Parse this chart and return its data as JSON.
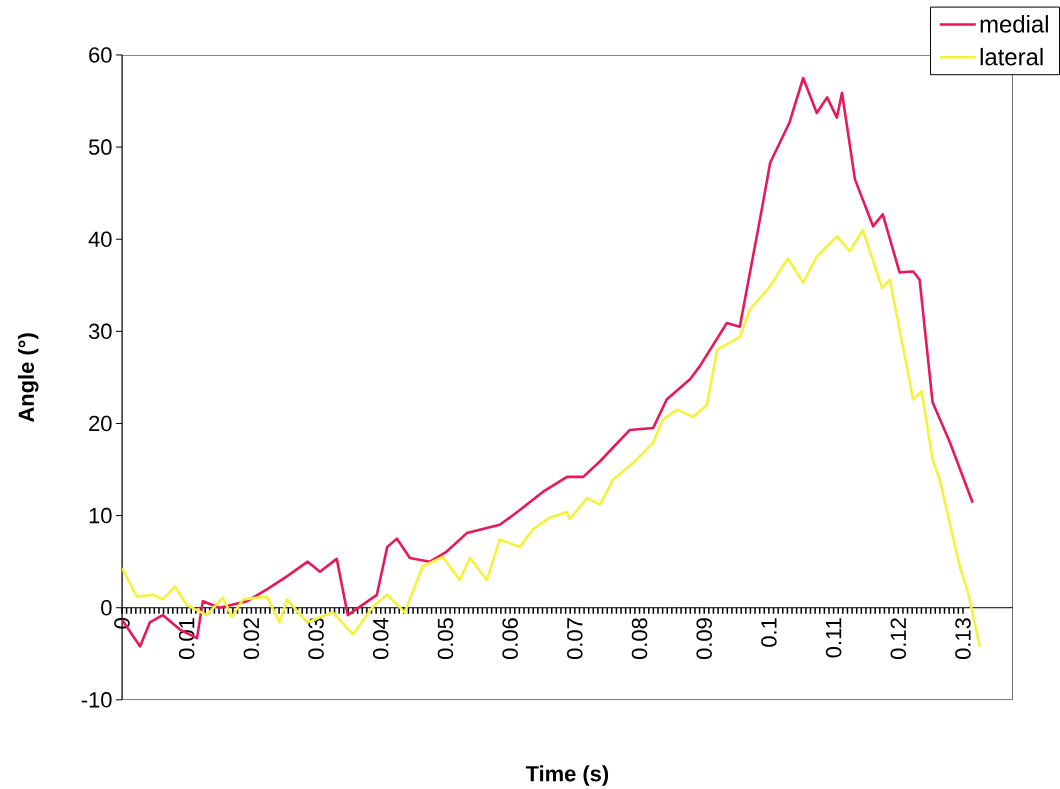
{
  "chart_data": {
    "type": "line",
    "xlabel": "Time (s)",
    "ylabel": "Angle (°)",
    "xlim": [
      0,
      0.1377
    ],
    "xticks": [
      0,
      0.01,
      0.02,
      0.03,
      0.04,
      0.05,
      0.06,
      0.07,
      0.08,
      0.09,
      0.1,
      0.11,
      0.12,
      0.13
    ],
    "ylim": [
      -10,
      60
    ],
    "yticks": [
      -10,
      0,
      10,
      20,
      30,
      40,
      50,
      60
    ],
    "legend": "top right",
    "series": [
      {
        "name": "medial",
        "color": "#e8185a",
        "x": [
          0,
          0.0028,
          0.0043,
          0.0063,
          0.009,
          0.0116,
          0.0125,
          0.0151,
          0.0193,
          0.0224,
          0.0255,
          0.0287,
          0.0306,
          0.0332,
          0.0349,
          0.0394,
          0.041,
          0.0425,
          0.0445,
          0.0476,
          0.0502,
          0.0533,
          0.0584,
          0.0615,
          0.0651,
          0.0688,
          0.0713,
          0.0739,
          0.0785,
          0.0821,
          0.0842,
          0.0878,
          0.0893,
          0.0935,
          0.0955,
          0.0986,
          0.1002,
          0.1032,
          0.1053,
          0.1074,
          0.109,
          0.1105,
          0.1113,
          0.1133,
          0.1161,
          0.1176,
          0.1202,
          0.1223,
          0.1233,
          0.1253,
          0.128,
          0.1315
        ],
        "values": [
          -1.3,
          -4.2,
          -1.6,
          -0.8,
          -2.4,
          -3.3,
          0.7,
          0,
          0.7,
          2,
          3.4,
          5,
          3.9,
          5.3,
          -0.8,
          1.4,
          6.6,
          7.5,
          5.4,
          5,
          6.1,
          8.1,
          9,
          10.6,
          12.6,
          14.2,
          14.2,
          15.9,
          19.3,
          19.5,
          22.6,
          24.8,
          26.2,
          30.9,
          30.5,
          42.1,
          48.3,
          52.7,
          57.5,
          53.7,
          55.4,
          53.2,
          55.9,
          46.5,
          41.4,
          42.7,
          36.4,
          36.5,
          35.6,
          22.3,
          17.9,
          11.4
        ]
      },
      {
        "name": "lateral",
        "color": "#f5f23a",
        "x": [
          0,
          0.0023,
          0.0048,
          0.0063,
          0.0082,
          0.01,
          0.0131,
          0.0156,
          0.017,
          0.0187,
          0.0224,
          0.0244,
          0.0255,
          0.0286,
          0.0326,
          0.0357,
          0.0388,
          0.041,
          0.0437,
          0.0465,
          0.0496,
          0.0522,
          0.0538,
          0.0564,
          0.0584,
          0.0615,
          0.0635,
          0.0662,
          0.0688,
          0.0692,
          0.0719,
          0.0739,
          0.0759,
          0.079,
          0.0821,
          0.0836,
          0.0858,
          0.0883,
          0.0904,
          0.092,
          0.0955,
          0.0971,
          0.1002,
          0.1029,
          0.1053,
          0.1074,
          0.1105,
          0.1125,
          0.1145,
          0.1175,
          0.1187,
          0.1223,
          0.1236,
          0.1253,
          0.1264,
          0.1295,
          0.1308,
          0.1326
        ],
        "values": [
          4.3,
          1.2,
          1.4,
          0.9,
          2.3,
          0.3,
          -0.8,
          1.1,
          -1,
          0.9,
          1.2,
          -1.6,
          0.9,
          -1.6,
          -0.5,
          -2.9,
          0.1,
          1.4,
          -0.5,
          4.5,
          5.5,
          3,
          5.4,
          3,
          7.4,
          6.6,
          8.5,
          9.8,
          10.4,
          9.6,
          11.9,
          11.2,
          13.9,
          15.7,
          17.9,
          20.4,
          21.5,
          20.7,
          22,
          28,
          29.4,
          32.4,
          34.9,
          37.9,
          35.3,
          38.1,
          40.3,
          38.7,
          41,
          34.7,
          35.6,
          22.6,
          23.5,
          16.1,
          13.9,
          4.5,
          1.6,
          -4.2
        ]
      }
    ]
  }
}
